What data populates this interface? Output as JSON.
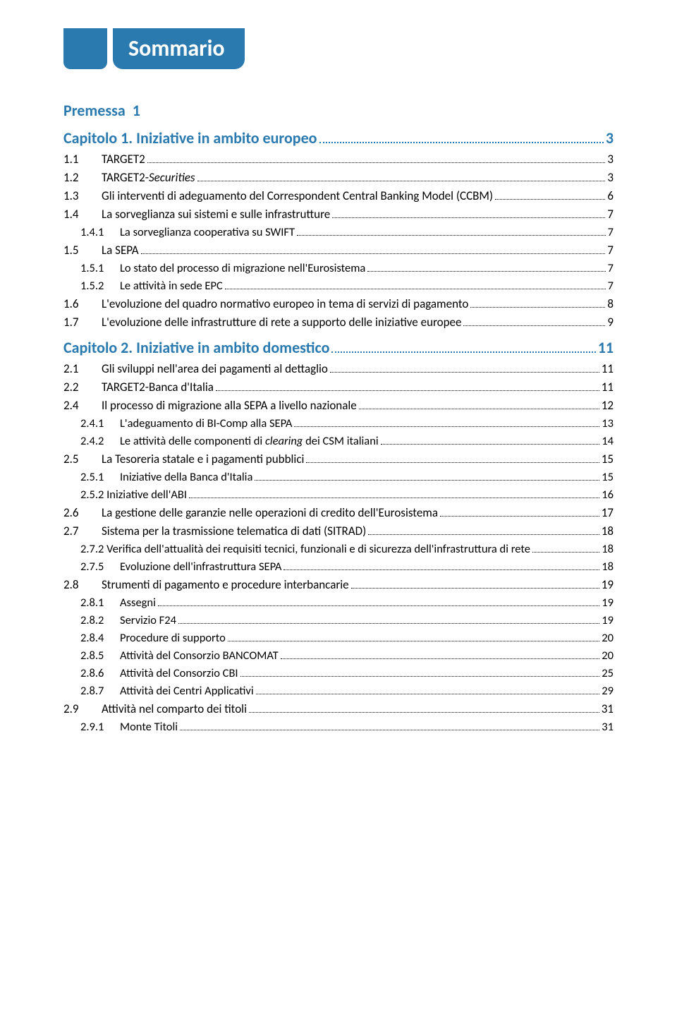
{
  "colors": {
    "accent": "#2a7ab0",
    "text": "#000000",
    "background": "#ffffff"
  },
  "fonts": {
    "body_family": "Calibri",
    "heading_size_pt": 16,
    "body_size_pt": 12
  },
  "banner_title": "Sommario",
  "premessa": {
    "label": "Premessa",
    "page": "1"
  },
  "chapters": [
    {
      "num": "Capitolo 1.",
      "label": "Iniziative in ambito europeo",
      "page": "3",
      "items": [
        {
          "type": "l1",
          "num": "1.1",
          "label": "TARGET2",
          "page": "3"
        },
        {
          "type": "l1",
          "num": "1.2",
          "label": "TARGET2-Securities",
          "italic_part": "Securities",
          "page": "3"
        },
        {
          "type": "l1",
          "num": "1.3",
          "label": "Gli interventi di adeguamento del Correspondent Central Banking Model (CCBM)",
          "page": "6"
        },
        {
          "type": "l1",
          "num": "1.4",
          "label": "La sorveglianza sui sistemi e sulle infrastrutture",
          "page": "7"
        },
        {
          "type": "l2",
          "num": "1.4.1",
          "label": "La sorveglianza cooperativa su SWIFT",
          "page": "7"
        },
        {
          "type": "l1",
          "num": "1.5",
          "label": "La SEPA",
          "page": "7"
        },
        {
          "type": "l2",
          "num": "1.5.1",
          "label": "Lo stato del processo di migrazione nell'Eurosistema",
          "page": "7"
        },
        {
          "type": "l2",
          "num": "1.5.2",
          "label": "Le attività in sede EPC",
          "page": "7"
        },
        {
          "type": "l1",
          "num": "1.6",
          "label": "L'evoluzione del quadro normativo europeo in tema di servizi di pagamento",
          "page": "8"
        },
        {
          "type": "l1",
          "num": "1.7",
          "label": "L'evoluzione delle infrastrutture di rete a supporto delle iniziative europee",
          "page": "9"
        }
      ]
    },
    {
      "num": "Capitolo 2.",
      "label": "Iniziative in ambito domestico",
      "page": "11",
      "items": [
        {
          "type": "l1",
          "num": "2.1",
          "label": "Gli sviluppi nell'area dei pagamenti al dettaglio",
          "page": "11"
        },
        {
          "type": "l1",
          "num": "2.2",
          "label": "TARGET2-Banca d'Italia",
          "page": "11"
        },
        {
          "type": "l1",
          "num": "2.4",
          "label": "Il processo di migrazione alla SEPA a livello nazionale",
          "page": "12"
        },
        {
          "type": "l2",
          "num": "2.4.1",
          "label": "L'adeguamento di BI-Comp alla SEPA",
          "page": "13"
        },
        {
          "type": "l2",
          "num": "2.4.2",
          "label_pre": "Le attività delle componenti di ",
          "label_italic": "clearing",
          "label_post": " dei CSM italiani",
          "page": "14"
        },
        {
          "type": "l1",
          "num": "2.5",
          "label": "La Tesoreria statale e i pagamenti pubblici",
          "page": "15"
        },
        {
          "type": "l2",
          "num": "2.5.1",
          "label": "Iniziative della Banca d'Italia",
          "page": "15"
        },
        {
          "type": "l2b",
          "num_label": "2.5.2 Iniziative dell'ABI",
          "page": "16"
        },
        {
          "type": "l1",
          "num": "2.6",
          "label": "La gestione delle garanzie nelle operazioni di credito  dell'Eurosistema",
          "page": "17"
        },
        {
          "type": "l1",
          "num": "2.7",
          "label": "Sistema per la trasmissione telematica di dati (SITRAD)",
          "page": "18"
        },
        {
          "type": "l2b",
          "num_label": "2.7.2 Verifica dell'attualità dei requisiti tecnici, funzionali e di sicurezza dell'infrastruttura di rete",
          "page": "18"
        },
        {
          "type": "l2",
          "num": "2.7.5",
          "label": "Evoluzione dell'infrastruttura SEPA",
          "page": "18"
        },
        {
          "type": "l1",
          "num": "2.8",
          "label": "Strumenti di pagamento e procedure interbancarie",
          "page": "19"
        },
        {
          "type": "l2",
          "num": "2.8.1",
          "label": "Assegni",
          "page": "19"
        },
        {
          "type": "l2",
          "num": "2.8.2",
          "label": "Servizio F24",
          "page": "19"
        },
        {
          "type": "l2",
          "num": "2.8.4",
          "label": "Procedure di supporto",
          "page": "20"
        },
        {
          "type": "l2",
          "num": "2.8.5",
          "label": "Attività del Consorzio BANCOMAT",
          "page": "20"
        },
        {
          "type": "l2",
          "num": "2.8.6",
          "label": "Attività del Consorzio CBI",
          "page": "25"
        },
        {
          "type": "l2",
          "num": "2.8.7",
          "label": "Attività dei Centri Applicativi",
          "page": "29"
        },
        {
          "type": "l1",
          "num": "2.9",
          "label": "Attività nel comparto dei titoli",
          "page": "31"
        },
        {
          "type": "l2",
          "num": "2.9.1",
          "label": "Monte Titoli",
          "page": "31"
        }
      ]
    }
  ]
}
